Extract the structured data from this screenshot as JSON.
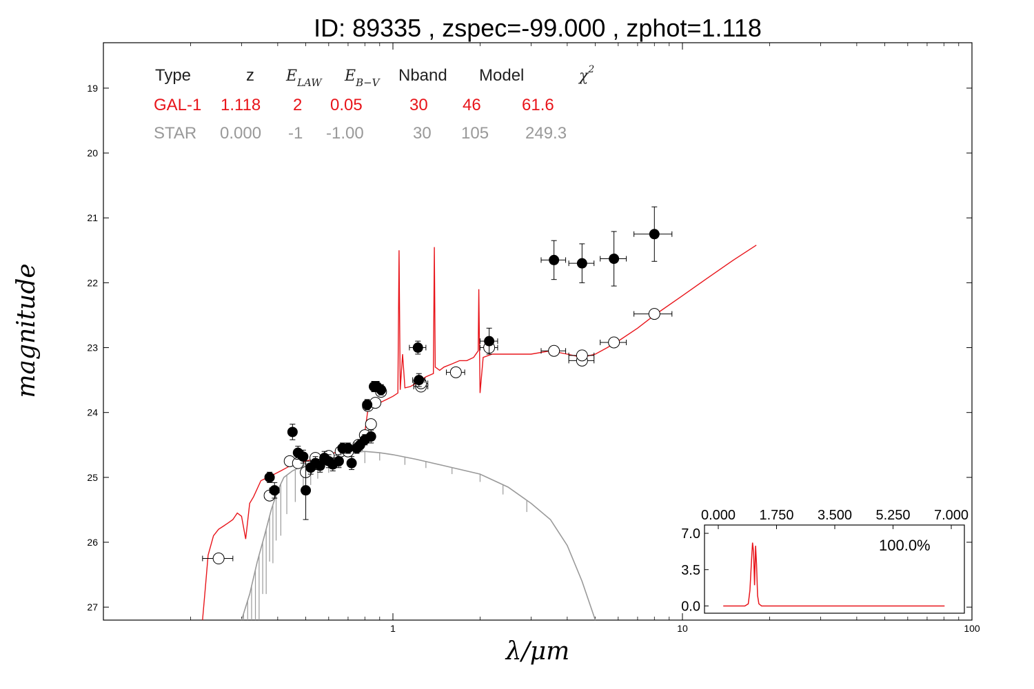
{
  "chart_data": {
    "type": "scatter",
    "title": "ID:  89335 , zspec=-99.000 , zphot=1.118",
    "xlabel": "λ/μm",
    "ylabel": "magnitude",
    "xscale": "log",
    "xlim": [
      0.1,
      100
    ],
    "ylim": [
      27.2,
      18.3
    ],
    "x_tick_labels": [
      "1",
      "10",
      "100"
    ],
    "x_ticks": [
      1,
      10,
      100
    ],
    "y_ticks": [
      19,
      20,
      21,
      22,
      23,
      24,
      25,
      26,
      27
    ],
    "y_tick_labels": [
      "19",
      "20",
      "21",
      "22",
      "23",
      "24",
      "25",
      "26",
      "27"
    ],
    "colors": {
      "galaxy": "#e8141a",
      "star": "#999999",
      "points": "#000000"
    },
    "fit_table": {
      "headers": [
        "Type",
        "z",
        "E_LAW",
        "E_B-V",
        "Nband",
        "Model",
        "χ2"
      ],
      "rows": [
        {
          "type": "GAL-1",
          "z": "1.118",
          "elaw": "2",
          "ebv": "0.05",
          "nband": "30",
          "model": "46",
          "chi2": "61.6",
          "color": "#e8141a"
        },
        {
          "type": "STAR",
          "z": "0.000",
          "elaw": "-1",
          "ebv": "-1.00",
          "nband": "30",
          "model": "105",
          "chi2": "249.3",
          "color": "#999999"
        }
      ]
    },
    "observed": [
      {
        "x": 0.375,
        "y": 25.0,
        "xerr": 0.012,
        "yerr": 0.08
      },
      {
        "x": 0.39,
        "y": 25.2,
        "xerr": 0.015,
        "yerr": 0.12
      },
      {
        "x": 0.45,
        "y": 24.3,
        "xerr": 0.008,
        "yerr": 0.12
      },
      {
        "x": 0.47,
        "y": 24.62,
        "xerr": 0.01,
        "yerr": 0.1
      },
      {
        "x": 0.49,
        "y": 24.68,
        "xerr": 0.01,
        "yerr": 0.1
      },
      {
        "x": 0.5,
        "y": 25.2,
        "xerr": 0.01,
        "yerr": 0.45
      },
      {
        "x": 0.52,
        "y": 24.85,
        "xerr": 0.01,
        "yerr": 0.1
      },
      {
        "x": 0.54,
        "y": 24.78,
        "xerr": 0.01,
        "yerr": 0.1
      },
      {
        "x": 0.56,
        "y": 24.82,
        "xerr": 0.01,
        "yerr": 0.1
      },
      {
        "x": 0.58,
        "y": 24.7,
        "xerr": 0.01,
        "yerr": 0.1
      },
      {
        "x": 0.6,
        "y": 24.75,
        "xerr": 0.01,
        "yerr": 0.1
      },
      {
        "x": 0.62,
        "y": 24.8,
        "xerr": 0.01,
        "yerr": 0.1
      },
      {
        "x": 0.65,
        "y": 24.75,
        "xerr": 0.01,
        "yerr": 0.1
      },
      {
        "x": 0.67,
        "y": 24.55,
        "xerr": 0.01,
        "yerr": 0.08
      },
      {
        "x": 0.7,
        "y": 24.55,
        "xerr": 0.01,
        "yerr": 0.08
      },
      {
        "x": 0.72,
        "y": 24.78,
        "xerr": 0.01,
        "yerr": 0.1
      },
      {
        "x": 0.75,
        "y": 24.55,
        "xerr": 0.01,
        "yerr": 0.08
      },
      {
        "x": 0.77,
        "y": 24.5,
        "xerr": 0.01,
        "yerr": 0.08
      },
      {
        "x": 0.8,
        "y": 24.42,
        "xerr": 0.01,
        "yerr": 0.08
      },
      {
        "x": 0.815,
        "y": 23.88,
        "xerr": 0.01,
        "yerr": 0.08
      },
      {
        "x": 0.84,
        "y": 24.37,
        "xerr": 0.01,
        "yerr": 0.1
      },
      {
        "x": 0.86,
        "y": 23.6,
        "xerr": 0.02,
        "yerr": 0.08
      },
      {
        "x": 0.88,
        "y": 23.6,
        "xerr": 0.02,
        "yerr": 0.08
      },
      {
        "x": 0.91,
        "y": 23.65,
        "xerr": 0.02,
        "yerr": 0.08
      },
      {
        "x": 1.22,
        "y": 23.0,
        "xerr": 0.08,
        "yerr": 0.1
      },
      {
        "x": 1.23,
        "y": 23.5,
        "xerr": 0.06,
        "yerr": 0.1
      },
      {
        "x": 2.15,
        "y": 22.9,
        "xerr": 0.15,
        "yerr": 0.2
      },
      {
        "x": 3.6,
        "y": 21.65,
        "xerr": 0.35,
        "yerr": 0.3
      },
      {
        "x": 4.5,
        "y": 21.7,
        "xerr": 0.45,
        "yerr": 0.3
      },
      {
        "x": 5.8,
        "y": 21.63,
        "xerr": 0.6,
        "yerr": 0.42
      },
      {
        "x": 8.0,
        "y": 21.25,
        "xerr": 1.2,
        "yerr": 0.42
      }
    ],
    "model_mags": [
      {
        "x": 0.25,
        "y": 26.25,
        "xerr": 0.03
      },
      {
        "x": 0.375,
        "y": 25.28,
        "xerr": 0.015
      },
      {
        "x": 0.44,
        "y": 24.75,
        "xerr": 0.01
      },
      {
        "x": 0.47,
        "y": 24.78,
        "xerr": 0.01
      },
      {
        "x": 0.5,
        "y": 24.92,
        "xerr": 0.01
      },
      {
        "x": 0.54,
        "y": 24.7,
        "xerr": 0.01
      },
      {
        "x": 0.6,
        "y": 24.67,
        "xerr": 0.01
      },
      {
        "x": 0.66,
        "y": 24.6,
        "xerr": 0.01
      },
      {
        "x": 0.7,
        "y": 24.6,
        "xerr": 0.01
      },
      {
        "x": 0.76,
        "y": 24.5,
        "xerr": 0.01
      },
      {
        "x": 0.8,
        "y": 24.35,
        "xerr": 0.01
      },
      {
        "x": 0.84,
        "y": 24.18,
        "xerr": 0.01
      },
      {
        "x": 0.82,
        "y": 23.9,
        "xerr": 0.01
      },
      {
        "x": 0.87,
        "y": 23.85,
        "xerr": 0.02
      },
      {
        "x": 0.91,
        "y": 23.68,
        "xerr": 0.02
      },
      {
        "x": 1.25,
        "y": 23.6,
        "xerr": 0.07
      },
      {
        "x": 1.25,
        "y": 23.55,
        "xerr": 0.07
      },
      {
        "x": 1.65,
        "y": 23.38,
        "xerr": 0.12
      },
      {
        "x": 2.15,
        "y": 23.0,
        "xerr": 0.15
      },
      {
        "x": 3.6,
        "y": 23.05,
        "xerr": 0.35
      },
      {
        "x": 4.5,
        "y": 23.2,
        "xerr": 0.45
      },
      {
        "x": 4.5,
        "y": 23.12,
        "xerr": 0.45
      },
      {
        "x": 5.8,
        "y": 22.92,
        "xerr": 0.6
      },
      {
        "x": 8.0,
        "y": 22.48,
        "xerr": 1.2
      }
    ],
    "galaxy_sed": [
      [
        0.22,
        27.2
      ],
      [
        0.225,
        26.7
      ],
      [
        0.23,
        26.2
      ],
      [
        0.24,
        25.9
      ],
      [
        0.25,
        25.8
      ],
      [
        0.26,
        25.75
      ],
      [
        0.27,
        25.7
      ],
      [
        0.28,
        25.65
      ],
      [
        0.29,
        25.55
      ],
      [
        0.3,
        25.6
      ],
      [
        0.31,
        25.95
      ],
      [
        0.32,
        25.4
      ],
      [
        0.33,
        25.3
      ],
      [
        0.35,
        25.05
      ],
      [
        0.37,
        25.0
      ],
      [
        0.39,
        24.95
      ],
      [
        0.41,
        24.9
      ],
      [
        0.43,
        24.85
      ],
      [
        0.45,
        24.8
      ],
      [
        0.48,
        24.78
      ],
      [
        0.5,
        24.75
      ],
      [
        0.53,
        24.72
      ],
      [
        0.56,
        24.7
      ],
      [
        0.6,
        24.65
      ],
      [
        0.65,
        24.6
      ],
      [
        0.7,
        24.58
      ],
      [
        0.75,
        24.55
      ],
      [
        0.78,
        24.5
      ],
      [
        0.8,
        24.3
      ],
      [
        0.82,
        23.95
      ],
      [
        0.85,
        23.9
      ],
      [
        0.9,
        23.85
      ],
      [
        0.95,
        23.8
      ],
      [
        1.0,
        23.75
      ],
      [
        1.04,
        23.7
      ],
      [
        1.05,
        21.5
      ],
      [
        1.06,
        23.65
      ],
      [
        1.08,
        23.1
      ],
      [
        1.1,
        23.62
      ],
      [
        1.15,
        23.6
      ],
      [
        1.2,
        23.55
      ],
      [
        1.25,
        23.5
      ],
      [
        1.3,
        23.45
      ],
      [
        1.38,
        23.4
      ],
      [
        1.39,
        21.45
      ],
      [
        1.4,
        23.3
      ],
      [
        1.45,
        23.35
      ],
      [
        1.5,
        23.3
      ],
      [
        1.6,
        23.25
      ],
      [
        1.7,
        23.2
      ],
      [
        1.8,
        23.2
      ],
      [
        1.9,
        23.15
      ],
      [
        1.97,
        23.05
      ],
      [
        1.98,
        22.1
      ],
      [
        2.0,
        23.7
      ],
      [
        2.05,
        23.15
      ],
      [
        2.2,
        23.1
      ],
      [
        2.5,
        23.1
      ],
      [
        3.0,
        23.1
      ],
      [
        3.5,
        23.05
      ],
      [
        4.0,
        23.1
      ],
      [
        4.5,
        23.15
      ],
      [
        5.0,
        23.1
      ],
      [
        5.5,
        23.0
      ],
      [
        6.0,
        22.9
      ],
      [
        7.0,
        22.7
      ],
      [
        8.0,
        22.5
      ],
      [
        10.0,
        22.2
      ],
      [
        12.0,
        21.95
      ],
      [
        15.0,
        21.65
      ],
      [
        18.0,
        21.42
      ]
    ],
    "star_sed": [
      [
        0.3,
        27.2
      ],
      [
        0.32,
        26.8
      ],
      [
        0.34,
        26.3
      ],
      [
        0.36,
        25.9
      ],
      [
        0.38,
        25.5
      ],
      [
        0.4,
        25.2
      ],
      [
        0.42,
        25.0
      ],
      [
        0.45,
        24.9
      ],
      [
        0.5,
        24.8
      ],
      [
        0.55,
        24.72
      ],
      [
        0.6,
        24.68
      ],
      [
        0.7,
        24.62
      ],
      [
        0.8,
        24.6
      ],
      [
        0.9,
        24.62
      ],
      [
        1.0,
        24.65
      ],
      [
        1.2,
        24.72
      ],
      [
        1.5,
        24.82
      ],
      [
        2.0,
        24.95
      ],
      [
        2.5,
        25.15
      ],
      [
        3.0,
        25.4
      ],
      [
        3.5,
        25.65
      ],
      [
        4.0,
        26.05
      ],
      [
        4.5,
        26.6
      ],
      [
        5.0,
        27.2
      ]
    ],
    "pdz_inset": {
      "x_ticks": [
        0.0,
        1.75,
        3.5,
        5.25,
        7.0
      ],
      "x_tick_labels": [
        "0.000",
        "1.750",
        "3.500",
        "5.250",
        "7.000"
      ],
      "y_ticks": [
        0.0,
        3.5,
        7.0
      ],
      "y_tick_labels": [
        "0.0",
        "3.5",
        "7.0"
      ],
      "xlim": [
        0,
        7.0
      ],
      "ylim": [
        -0.7,
        7.8
      ],
      "label": "100.0%",
      "curve": [
        [
          0.15,
          0.0
        ],
        [
          0.8,
          0.0
        ],
        [
          0.9,
          0.2
        ],
        [
          0.95,
          1.5
        ],
        [
          1.0,
          4.5
        ],
        [
          1.03,
          6.1
        ],
        [
          1.06,
          5.2
        ],
        [
          1.09,
          2.0
        ],
        [
          1.12,
          5.8
        ],
        [
          1.15,
          4.0
        ],
        [
          1.18,
          1.0
        ],
        [
          1.22,
          0.2
        ],
        [
          1.3,
          0.0
        ],
        [
          6.8,
          0.0
        ]
      ]
    }
  }
}
